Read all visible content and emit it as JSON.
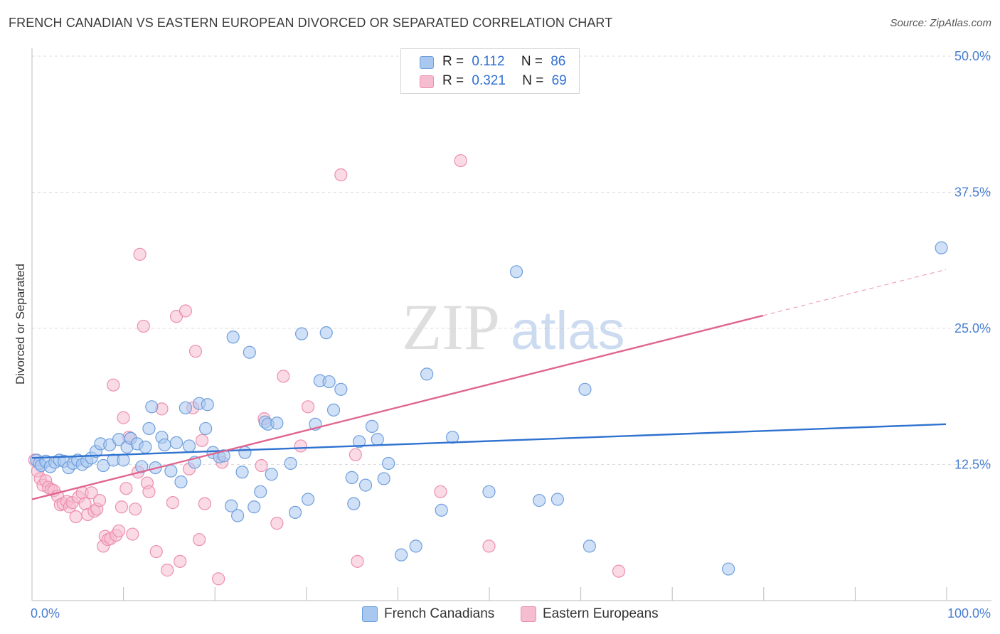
{
  "title": "FRENCH CANADIAN VS EASTERN EUROPEAN DIVORCED OR SEPARATED CORRELATION CHART",
  "source": "Source: ZipAtlas.com",
  "watermark": {
    "zip": "ZIP",
    "atlas": "atlas"
  },
  "colors": {
    "blue_fill": "#a9c8f0",
    "blue_stroke": "#6f9fdc",
    "blue_line": "#2f72d0",
    "pink_fill": "#f6bcd0",
    "pink_stroke": "#ec8fb0",
    "pink_line": "#e0668f",
    "axis_label": "#4a7fd0",
    "grid": "#dddddd"
  },
  "legend": {
    "rows": [
      {
        "r_label": "R =",
        "r_value": "0.112",
        "n_label": "N =",
        "n_value": "86"
      },
      {
        "r_label": "R =",
        "r_value": "0.321",
        "n_label": "N =",
        "n_value": "69"
      }
    ]
  },
  "bottom_legend": [
    "French Canadians",
    "Eastern Europeans"
  ],
  "chart_data": {
    "type": "scatter",
    "title": "FRENCH CANADIAN VS EASTERN EUROPEAN DIVORCED OR SEPARATED CORRELATION CHART",
    "xlabel": "",
    "ylabel": "Divorced or Separated",
    "xlim": [
      0,
      100
    ],
    "ylim": [
      0,
      53
    ],
    "x_tick_labels": [
      "0.0%",
      "100.0%"
    ],
    "y_ticks": [
      12.5,
      25.0,
      37.5,
      50.0
    ],
    "y_tick_labels": [
      "12.5%",
      "25.0%",
      "37.5%",
      "50.0%"
    ],
    "grid": true,
    "legend_position": "top-center",
    "series": [
      {
        "name": "French Canadians",
        "r": 0.112,
        "n": 86,
        "trend": {
          "x0": 0,
          "y0": 13.1,
          "x1": 100,
          "y1": 16.2,
          "solid_until": 100
        },
        "points": [
          [
            0.5,
            12.9
          ],
          [
            0.8,
            12.6
          ],
          [
            1.0,
            12.4
          ],
          [
            1.5,
            12.8
          ],
          [
            2.0,
            12.3
          ],
          [
            2.5,
            12.7
          ],
          [
            3.0,
            12.9
          ],
          [
            3.5,
            12.8
          ],
          [
            4.0,
            12.2
          ],
          [
            4.5,
            12.6
          ],
          [
            5.0,
            12.9
          ],
          [
            5.5,
            12.5
          ],
          [
            6.0,
            12.8
          ],
          [
            6.5,
            13.1
          ],
          [
            7.0,
            13.7
          ],
          [
            7.5,
            14.4
          ],
          [
            7.8,
            12.4
          ],
          [
            8.5,
            14.3
          ],
          [
            8.9,
            12.9
          ],
          [
            9.5,
            14.8
          ],
          [
            10.0,
            12.9
          ],
          [
            10.4,
            14.1
          ],
          [
            10.8,
            14.9
          ],
          [
            11.5,
            14.4
          ],
          [
            12.0,
            12.3
          ],
          [
            12.4,
            14.1
          ],
          [
            12.8,
            15.8
          ],
          [
            13.1,
            17.8
          ],
          [
            13.5,
            12.2
          ],
          [
            14.2,
            15.0
          ],
          [
            14.5,
            14.3
          ],
          [
            15.2,
            11.9
          ],
          [
            15.8,
            14.5
          ],
          [
            16.3,
            10.9
          ],
          [
            16.8,
            17.7
          ],
          [
            17.2,
            14.2
          ],
          [
            17.8,
            12.7
          ],
          [
            18.3,
            18.1
          ],
          [
            19.0,
            15.8
          ],
          [
            19.2,
            18.0
          ],
          [
            19.8,
            13.6
          ],
          [
            20.5,
            13.2
          ],
          [
            21.0,
            13.3
          ],
          [
            21.8,
            8.7
          ],
          [
            22.0,
            24.2
          ],
          [
            22.5,
            7.8
          ],
          [
            23.0,
            11.8
          ],
          [
            23.3,
            13.6
          ],
          [
            23.8,
            22.8
          ],
          [
            24.3,
            8.6
          ],
          [
            25.0,
            10.0
          ],
          [
            25.5,
            16.4
          ],
          [
            25.8,
            16.2
          ],
          [
            26.2,
            11.6
          ],
          [
            26.8,
            16.3
          ],
          [
            28.3,
            12.6
          ],
          [
            28.8,
            8.1
          ],
          [
            29.5,
            24.5
          ],
          [
            30.2,
            9.3
          ],
          [
            31.0,
            16.2
          ],
          [
            31.5,
            20.2
          ],
          [
            32.2,
            24.6
          ],
          [
            32.5,
            20.1
          ],
          [
            33.0,
            17.5
          ],
          [
            33.8,
            19.4
          ],
          [
            35.0,
            11.3
          ],
          [
            35.2,
            8.9
          ],
          [
            35.8,
            14.6
          ],
          [
            36.5,
            10.6
          ],
          [
            37.2,
            16.0
          ],
          [
            37.8,
            14.8
          ],
          [
            38.5,
            11.2
          ],
          [
            39.0,
            12.6
          ],
          [
            40.4,
            4.2
          ],
          [
            42.0,
            5.0
          ],
          [
            43.2,
            20.8
          ],
          [
            44.8,
            8.3
          ],
          [
            46.0,
            15.0
          ],
          [
            50.0,
            10.0
          ],
          [
            53.0,
            30.2
          ],
          [
            55.5,
            9.2
          ],
          [
            57.5,
            9.3
          ],
          [
            60.5,
            19.4
          ],
          [
            61.0,
            5.0
          ],
          [
            76.2,
            2.9
          ],
          [
            99.5,
            32.4
          ]
        ]
      },
      {
        "name": "Eastern Europeans",
        "r": 0.321,
        "n": 69,
        "trend": {
          "x0": 0,
          "y0": 9.3,
          "x1": 100,
          "y1": 30.4,
          "solid_until": 80
        },
        "points": [
          [
            0.3,
            12.9
          ],
          [
            0.6,
            11.9
          ],
          [
            0.9,
            11.2
          ],
          [
            1.2,
            10.6
          ],
          [
            1.5,
            11.0
          ],
          [
            1.8,
            10.4
          ],
          [
            2.1,
            10.2
          ],
          [
            2.4,
            10.1
          ],
          [
            2.8,
            9.6
          ],
          [
            3.1,
            8.8
          ],
          [
            3.4,
            8.9
          ],
          [
            3.8,
            9.1
          ],
          [
            4.1,
            8.6
          ],
          [
            4.4,
            9.0
          ],
          [
            4.8,
            7.7
          ],
          [
            5.1,
            9.5
          ],
          [
            5.5,
            9.9
          ],
          [
            5.8,
            8.9
          ],
          [
            6.1,
            7.9
          ],
          [
            6.5,
            9.9
          ],
          [
            6.8,
            8.2
          ],
          [
            7.1,
            8.4
          ],
          [
            7.4,
            9.2
          ],
          [
            7.8,
            5.0
          ],
          [
            8.0,
            5.9
          ],
          [
            8.3,
            5.6
          ],
          [
            8.6,
            5.7
          ],
          [
            8.9,
            19.8
          ],
          [
            9.2,
            6.0
          ],
          [
            9.5,
            6.4
          ],
          [
            9.8,
            8.6
          ],
          [
            10.0,
            16.8
          ],
          [
            10.3,
            10.3
          ],
          [
            10.6,
            15.0
          ],
          [
            11.0,
            6.1
          ],
          [
            11.3,
            8.4
          ],
          [
            11.6,
            11.8
          ],
          [
            11.8,
            31.8
          ],
          [
            12.2,
            25.2
          ],
          [
            12.6,
            10.8
          ],
          [
            12.8,
            10.0
          ],
          [
            13.6,
            4.5
          ],
          [
            14.2,
            17.6
          ],
          [
            14.8,
            2.8
          ],
          [
            15.4,
            9.0
          ],
          [
            15.8,
            26.1
          ],
          [
            16.2,
            3.6
          ],
          [
            16.8,
            26.6
          ],
          [
            17.2,
            12.1
          ],
          [
            17.6,
            17.7
          ],
          [
            17.9,
            22.9
          ],
          [
            18.3,
            5.6
          ],
          [
            18.6,
            14.7
          ],
          [
            18.9,
            8.9
          ],
          [
            20.4,
            2.0
          ],
          [
            20.8,
            12.7
          ],
          [
            25.1,
            12.4
          ],
          [
            25.4,
            16.7
          ],
          [
            26.8,
            7.1
          ],
          [
            27.5,
            20.6
          ],
          [
            29.4,
            14.2
          ],
          [
            30.2,
            17.8
          ],
          [
            33.8,
            39.1
          ],
          [
            35.4,
            13.4
          ],
          [
            35.6,
            3.6
          ],
          [
            44.7,
            10.0
          ],
          [
            46.9,
            40.4
          ],
          [
            50.0,
            5.0
          ],
          [
            64.2,
            2.7
          ]
        ]
      }
    ]
  }
}
